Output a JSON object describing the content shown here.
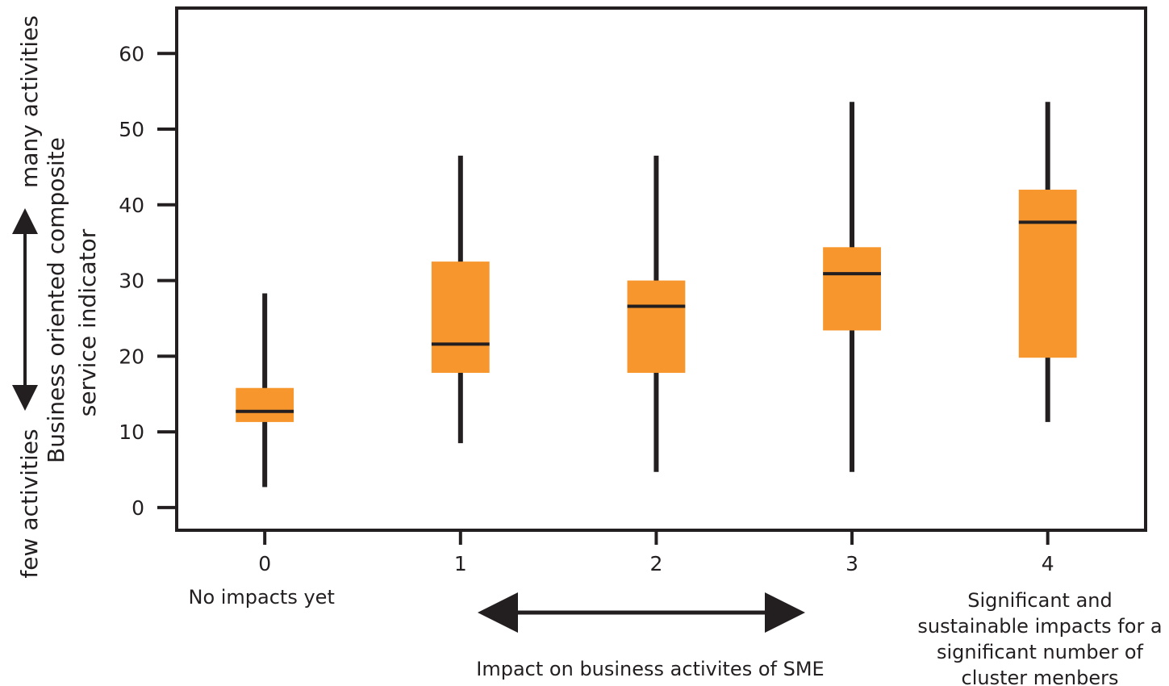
{
  "chart_data": {
    "type": "boxplot",
    "title": "",
    "xlabel": "Impact on business activites of SME",
    "ylabel_lines": [
      "Business oriented composite",
      "service indicator"
    ],
    "y_scale_labels": {
      "low": "few activities",
      "high": "many activities"
    },
    "x_ticks": [
      "0",
      "1",
      "2",
      "3",
      "4"
    ],
    "x_tick_notes": [
      [
        "No impacts yet"
      ],
      [],
      [],
      [],
      [
        "Significant and",
        "sustainable impacts for a",
        "significant number of",
        "cluster menbers"
      ]
    ],
    "y_ticks": [
      "0",
      "10",
      "20",
      "30",
      "40",
      "50",
      "60"
    ],
    "ylim": [
      -3,
      66
    ],
    "xlim": [
      -0.45,
      4.5
    ],
    "grid": false,
    "colors": {
      "box": "#f7962d",
      "line": "#231f20"
    },
    "boxes": [
      {
        "x": 0,
        "min": 2.7,
        "q1": 11.3,
        "median": 12.7,
        "q3": 15.8,
        "max": 28.3
      },
      {
        "x": 1,
        "min": 8.5,
        "q1": 17.8,
        "median": 21.6,
        "q3": 32.5,
        "max": 46.5
      },
      {
        "x": 2,
        "min": 4.7,
        "q1": 17.8,
        "median": 26.6,
        "q3": 30.0,
        "max": 46.5
      },
      {
        "x": 3,
        "min": 4.7,
        "q1": 23.4,
        "median": 30.9,
        "q3": 34.4,
        "max": 53.6
      },
      {
        "x": 4,
        "min": 11.3,
        "q1": 19.8,
        "median": 37.7,
        "q3": 42.0,
        "max": 53.6
      }
    ]
  }
}
